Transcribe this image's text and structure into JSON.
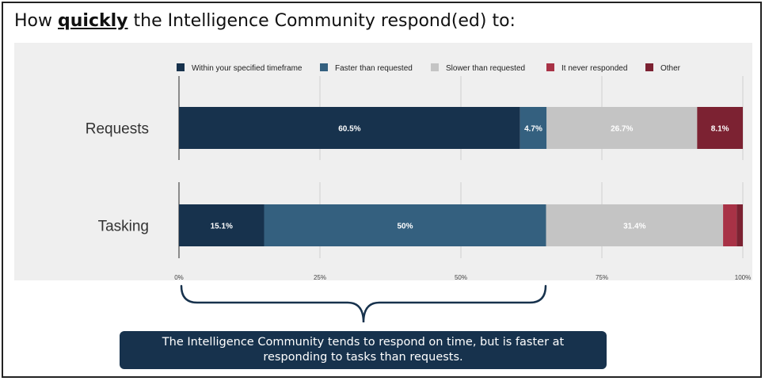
{
  "headline": {
    "prefix": "How ",
    "emphasis": "quickly",
    "suffix": " the Intelligence Community respond(ed) to:"
  },
  "callout": {
    "text": "The Intelligence Community tends to respond on time, but is faster at responding to tasks than requests."
  },
  "chart_data": {
    "type": "bar",
    "orientation": "horizontal",
    "stacked": true,
    "categories": [
      "Requests",
      "Tasking"
    ],
    "series": [
      {
        "name": "Within your specified timeframe",
        "color": "#17324d",
        "values": [
          60.5,
          15.1
        ],
        "labels": [
          "60.5%",
          "15.1%"
        ]
      },
      {
        "name": "Faster than requested",
        "color": "#34607f",
        "values": [
          4.7,
          50
        ],
        "labels": [
          "4.7%",
          "50%"
        ]
      },
      {
        "name": "Slower than requested",
        "color": "#c4c4c4",
        "values": [
          26.7,
          31.4
        ],
        "labels": [
          "26.7%",
          "31.4%"
        ]
      },
      {
        "name": "It never responded",
        "color": "#a83246",
        "values": [
          0,
          2.4
        ],
        "labels": [
          "",
          ""
        ]
      },
      {
        "name": "Other",
        "color": "#7c2232",
        "values": [
          8.1,
          1.1
        ],
        "labels": [
          "8.1%",
          ""
        ]
      }
    ],
    "xlim": [
      0,
      100
    ],
    "xticks": [
      "0%",
      "25%",
      "50%",
      "75%",
      "100%"
    ],
    "grid": true,
    "legend": "top"
  }
}
